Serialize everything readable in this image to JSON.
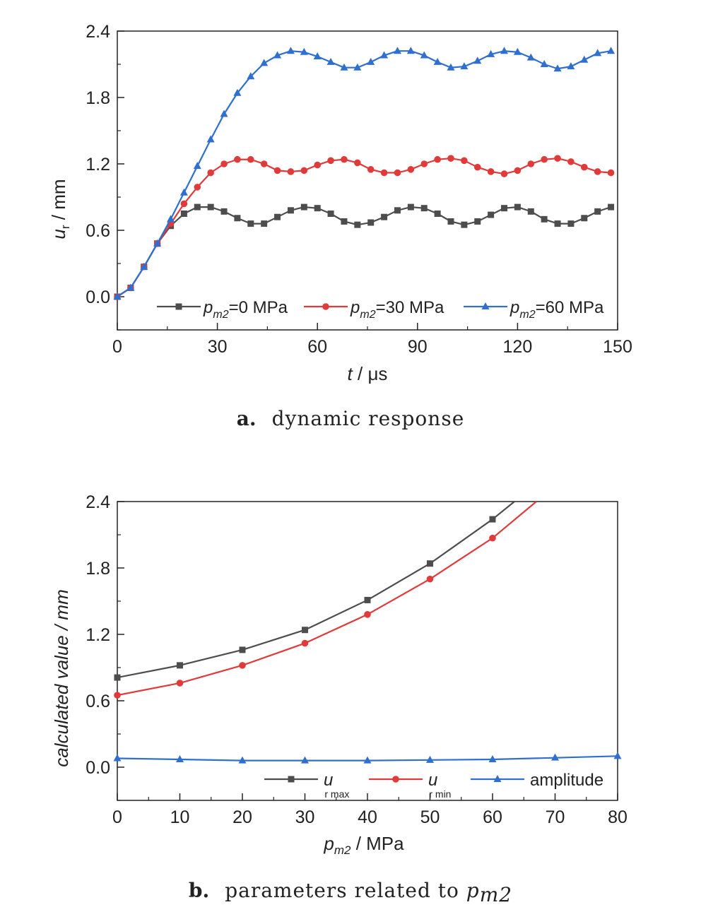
{
  "chart_data": [
    {
      "type": "line",
      "caption_label": "a.",
      "caption_text": "dynamic response",
      "xlabel_var": "t",
      "xlabel_unit": " / μs",
      "ylabel_var": "u",
      "ylabel_sub": "r",
      "ylabel_unit": " / mm",
      "xlim": [
        0,
        150
      ],
      "ylim": [
        -0.3,
        2.4
      ],
      "xticks": [
        "0",
        "30",
        "60",
        "90",
        "120",
        "150"
      ],
      "yticks": [
        "0.0",
        "0.6",
        "1.2",
        "1.8",
        "2.4"
      ],
      "legend_position": "bottom",
      "x": [
        0,
        4,
        8,
        12,
        16,
        20,
        24,
        28,
        32,
        36,
        40,
        44,
        48,
        52,
        56,
        60,
        64,
        68,
        72,
        76,
        80,
        84,
        88,
        92,
        96,
        100,
        104,
        108,
        112,
        116,
        120,
        124,
        128,
        132,
        136,
        140,
        144,
        148
      ],
      "series": [
        {
          "name_var": "p",
          "name_sub": "m2",
          "name_rest": "=0 MPa",
          "color": "#4d4d4d",
          "marker": "square",
          "values": [
            0.0,
            0.08,
            0.27,
            0.48,
            0.64,
            0.75,
            0.81,
            0.81,
            0.77,
            0.71,
            0.66,
            0.66,
            0.72,
            0.78,
            0.81,
            0.8,
            0.75,
            0.68,
            0.65,
            0.67,
            0.72,
            0.78,
            0.81,
            0.8,
            0.75,
            0.68,
            0.65,
            0.68,
            0.74,
            0.8,
            0.81,
            0.77,
            0.7,
            0.66,
            0.66,
            0.71,
            0.77,
            0.81
          ]
        },
        {
          "name_var": "p",
          "name_sub": "m2",
          "name_rest": "=30 MPa",
          "color": "#e03a3a",
          "marker": "circle",
          "values": [
            0.0,
            0.08,
            0.27,
            0.48,
            0.66,
            0.84,
            0.99,
            1.12,
            1.2,
            1.24,
            1.24,
            1.2,
            1.14,
            1.13,
            1.14,
            1.19,
            1.23,
            1.24,
            1.21,
            1.15,
            1.12,
            1.12,
            1.15,
            1.2,
            1.24,
            1.25,
            1.23,
            1.17,
            1.13,
            1.11,
            1.14,
            1.2,
            1.24,
            1.25,
            1.22,
            1.17,
            1.13,
            1.12
          ]
        },
        {
          "name_var": "p",
          "name_sub": "m2",
          "name_rest": "=60 MPa",
          "color": "#2e6fcf",
          "marker": "triangle",
          "values": [
            0.0,
            0.08,
            0.27,
            0.48,
            0.7,
            0.94,
            1.18,
            1.42,
            1.65,
            1.84,
            1.99,
            2.11,
            2.18,
            2.22,
            2.21,
            2.17,
            2.12,
            2.07,
            2.07,
            2.12,
            2.18,
            2.22,
            2.22,
            2.18,
            2.12,
            2.07,
            2.08,
            2.13,
            2.19,
            2.22,
            2.21,
            2.16,
            2.1,
            2.06,
            2.08,
            2.14,
            2.2,
            2.22
          ]
        }
      ]
    },
    {
      "type": "line",
      "caption_label": "b.",
      "caption_text": "parameters related to ",
      "caption_var": "p",
      "caption_sub": "m2",
      "xlabel_var": "p",
      "xlabel_sub": "m2",
      "xlabel_unit": " / MPa",
      "ylabel": "calculated value / mm",
      "xlim": [
        0,
        80
      ],
      "ylim": [
        -0.3,
        2.4
      ],
      "xticks": [
        "0",
        "10",
        "20",
        "30",
        "40",
        "50",
        "60",
        "70",
        "80"
      ],
      "yticks": [
        "0.0",
        "0.6",
        "1.2",
        "1.8",
        "2.4"
      ],
      "legend_position": "bottom-right",
      "series": [
        {
          "name_var": "u",
          "name_sub": "r max",
          "color": "#4d4d4d",
          "marker": "square",
          "x": [
            0,
            10,
            20,
            30,
            40,
            50,
            60,
            63.5
          ],
          "values": [
            0.81,
            0.92,
            1.06,
            1.24,
            1.51,
            1.84,
            2.24,
            2.4
          ],
          "marker_count": 7
        },
        {
          "name_var": "u",
          "name_sub": "r min",
          "color": "#e03a3a",
          "marker": "circle",
          "x": [
            0,
            10,
            20,
            30,
            40,
            50,
            60,
            67
          ],
          "values": [
            0.65,
            0.76,
            0.92,
            1.12,
            1.38,
            1.7,
            2.07,
            2.4
          ],
          "marker_count": 7
        },
        {
          "name": "amplitude",
          "color": "#2e6fcf",
          "marker": "triangle",
          "x": [
            0,
            10,
            20,
            30,
            40,
            50,
            60,
            70,
            80
          ],
          "values": [
            0.08,
            0.07,
            0.06,
            0.06,
            0.06,
            0.065,
            0.07,
            0.085,
            0.1
          ],
          "marker_count": 9
        }
      ]
    }
  ]
}
